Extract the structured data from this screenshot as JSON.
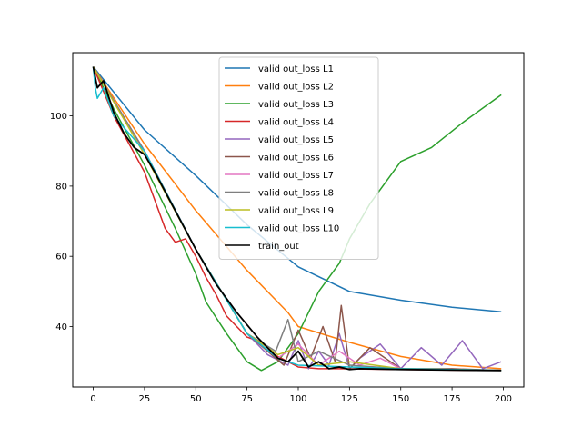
{
  "chart_data": {
    "type": "line",
    "title": "",
    "xlabel": "",
    "ylabel": "",
    "xlim": [
      -10,
      210
    ],
    "ylim": [
      22.8,
      118
    ],
    "xticks": [
      0,
      25,
      50,
      75,
      100,
      125,
      150,
      175,
      200
    ],
    "yticks": [
      40,
      60,
      80,
      100
    ],
    "grid": false,
    "legend_position": "upper-center",
    "series": [
      {
        "name": "valid out_loss L1",
        "color": "#1f77b4",
        "x": [
          0,
          25,
          50,
          75,
          100,
          125,
          150,
          175,
          199
        ],
        "y": [
          114,
          96,
          83,
          69,
          57,
          50,
          47.5,
          45.5,
          44.2
        ]
      },
      {
        "name": "valid out_loss L2",
        "color": "#ff7f0e",
        "x": [
          0,
          25,
          50,
          75,
          95,
          100,
          125,
          150,
          175,
          199
        ],
        "y": [
          114,
          92,
          73,
          56,
          44,
          40,
          35.5,
          31.5,
          29,
          28
        ]
      },
      {
        "name": "valid out_loss L3",
        "color": "#2ca02c",
        "x": [
          0,
          10,
          25,
          40,
          50,
          55,
          65,
          75,
          82,
          90,
          100,
          110,
          120,
          125,
          135,
          150,
          165,
          180,
          199
        ],
        "y": [
          114,
          102,
          86,
          68,
          55,
          47,
          38,
          30,
          27.5,
          30,
          38,
          50,
          58,
          65,
          75,
          87,
          91,
          98,
          106
        ]
      },
      {
        "name": "valid out_loss L4",
        "color": "#d62728",
        "x": [
          0,
          10,
          25,
          35,
          40,
          45,
          50,
          55,
          60,
          65,
          75,
          80,
          85,
          95,
          100,
          110,
          120,
          150,
          175,
          199
        ],
        "y": [
          114,
          100,
          84,
          68,
          64,
          65,
          60,
          54,
          49,
          43,
          37,
          36,
          33,
          30,
          28.5,
          28,
          28,
          27.8,
          27.6,
          27.5
        ]
      },
      {
        "name": "valid out_loss L5",
        "color": "#9467bd",
        "x": [
          0,
          25,
          50,
          75,
          85,
          95,
          100,
          105,
          110,
          115,
          120,
          125,
          130,
          140,
          150,
          160,
          170,
          180,
          190,
          199
        ],
        "y": [
          114,
          90,
          62,
          38,
          32,
          29,
          36,
          28,
          33,
          29,
          38,
          28,
          31,
          35,
          28,
          34,
          29,
          36,
          28,
          30
        ]
      },
      {
        "name": "valid out_loss L6",
        "color": "#8c564b",
        "x": [
          0,
          25,
          50,
          75,
          85,
          93,
          100,
          106,
          112,
          118,
          121,
          125,
          135,
          150,
          175,
          199
        ],
        "y": [
          114,
          90,
          62,
          38,
          33,
          29,
          39,
          31,
          40,
          30,
          46,
          28,
          34,
          28,
          28,
          27.5
        ]
      },
      {
        "name": "valid out_loss L7",
        "color": "#e377c2",
        "x": [
          0,
          25,
          50,
          75,
          90,
          100,
          110,
          120,
          130,
          140,
          150,
          175,
          199
        ],
        "y": [
          114,
          90,
          62,
          38,
          31,
          35,
          29,
          33,
          29,
          31,
          28,
          27.8,
          27.5
        ]
      },
      {
        "name": "valid out_loss L8",
        "color": "#7f7f7f",
        "x": [
          0,
          25,
          50,
          75,
          89,
          95,
          100,
          110,
          125,
          150,
          175,
          199
        ],
        "y": [
          114,
          90,
          62,
          38,
          33,
          42,
          30,
          33,
          29,
          28,
          27.8,
          27.5
        ]
      },
      {
        "name": "valid out_loss L9",
        "color": "#bcbd22",
        "x": [
          0,
          25,
          50,
          75,
          90,
          100,
          110,
          125,
          150,
          175,
          199
        ],
        "y": [
          114,
          89,
          62,
          38,
          32,
          34,
          29,
          30,
          28,
          27.8,
          27.5
        ]
      },
      {
        "name": "valid out_loss L10",
        "color": "#17becf",
        "x": [
          0,
          1,
          2,
          5,
          10,
          25,
          50,
          75,
          90,
          100,
          125,
          150,
          175,
          199
        ],
        "y": [
          114,
          108,
          105,
          108,
          100,
          90,
          62,
          38,
          31,
          29,
          28.5,
          28,
          27.8,
          27.5
        ]
      },
      {
        "name": "train_out",
        "color": "#000000",
        "x": [
          0,
          2,
          5,
          10,
          15,
          20,
          25,
          30,
          40,
          50,
          60,
          70,
          80,
          90,
          95,
          100,
          105,
          110,
          115,
          120,
          125,
          130,
          150,
          175,
          199
        ],
        "y": [
          114,
          108,
          110,
          101,
          95,
          91,
          89,
          84,
          73,
          62,
          52,
          44,
          37,
          31,
          30,
          33,
          28.5,
          30,
          28,
          28.5,
          27.8,
          28,
          27.8,
          27.6,
          27.5
        ]
      }
    ]
  }
}
